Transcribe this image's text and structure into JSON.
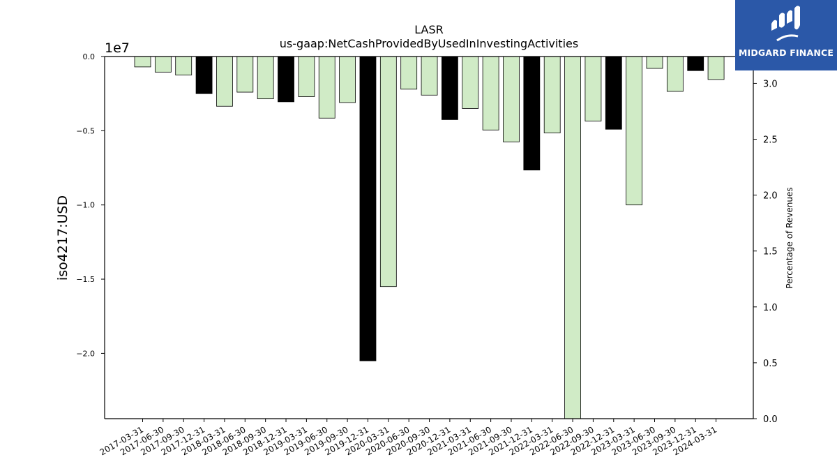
{
  "brand": {
    "name": "MIDGARD FINANCE",
    "bg_color": "#2b58a8",
    "icon": "midgard-logo-icon"
  },
  "chart_data": {
    "type": "bar",
    "title": "LASR",
    "subtitle": "us-gaap:NetCashProvidedByUsedInInvestingActivities",
    "ylabel": "iso4217:USD",
    "y_offset_label": "1e7",
    "y2label": "Percentage of Revenues",
    "ylim": [
      -24400000,
      0
    ],
    "y2lim": [
      0,
      3.24
    ],
    "yticks": [
      {
        "value": 0,
        "label": "0.0"
      },
      {
        "value": -5000000,
        "label": "−0.5"
      },
      {
        "value": -10000000,
        "label": "−1.0"
      },
      {
        "value": -15000000,
        "label": "−1.5"
      },
      {
        "value": -20000000,
        "label": "−2.0"
      }
    ],
    "y2ticks": [
      {
        "value": 0.0,
        "label": "0.0"
      },
      {
        "value": 0.5,
        "label": "0.5"
      },
      {
        "value": 1.0,
        "label": "1.0"
      },
      {
        "value": 1.5,
        "label": "1.5"
      },
      {
        "value": 2.0,
        "label": "2.0"
      },
      {
        "value": 2.5,
        "label": "2.5"
      },
      {
        "value": 3.0,
        "label": "3.0"
      }
    ],
    "categories": [
      "2017-03-31",
      "2017-06-30",
      "2017-09-30",
      "2017-12-31",
      "2018-03-31",
      "2018-06-30",
      "2018-09-30",
      "2018-12-31",
      "2019-03-31",
      "2019-06-30",
      "2019-09-30",
      "2019-12-31",
      "2020-03-31",
      "2020-06-30",
      "2020-09-30",
      "2020-12-31",
      "2021-03-31",
      "2021-06-30",
      "2021-09-30",
      "2021-12-31",
      "2022-03-31",
      "2022-06-30",
      "2022-09-30",
      "2022-12-31",
      "2023-03-31",
      "2023-06-30",
      "2023-09-30",
      "2023-12-31",
      "2024-03-31"
    ],
    "values": [
      -700000,
      -1050000,
      -1250000,
      -2500000,
      -3350000,
      -2400000,
      -2850000,
      -3050000,
      -2700000,
      -4150000,
      -3100000,
      -20500000,
      -15500000,
      -2200000,
      -2600000,
      -4250000,
      -3500000,
      -4950000,
      -5750000,
      -7650000,
      -5150000,
      -24400000,
      -4350000,
      -4900000,
      -10000000,
      -800000,
      -2350000,
      -950000,
      -1550000
    ],
    "is_q4": [
      false,
      false,
      false,
      true,
      false,
      false,
      false,
      true,
      false,
      false,
      false,
      true,
      false,
      false,
      false,
      true,
      false,
      false,
      false,
      true,
      false,
      false,
      false,
      true,
      false,
      false,
      false,
      true,
      false
    ],
    "colors": {
      "quarter": "#d0ebc6",
      "q4": "#000000",
      "edge": "#000000"
    },
    "grid": false,
    "legend": "none"
  }
}
